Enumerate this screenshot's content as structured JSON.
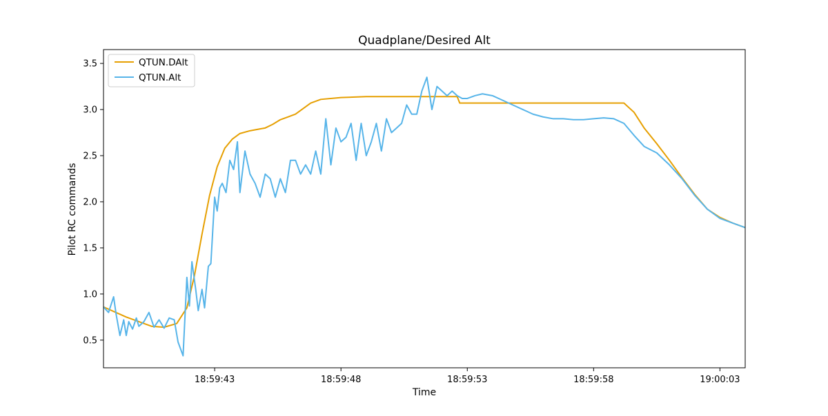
{
  "chart_data": {
    "type": "line",
    "title": "Quadplane/Desired Alt",
    "xlabel": "Time",
    "ylabel": "Pilot RC commands",
    "x_type": "time",
    "xlim": [
      "18:59:38.6",
      "19:00:04.0"
    ],
    "ylim": [
      0.2,
      3.65
    ],
    "x_ticks": [
      "18:59:43",
      "18:59:48",
      "18:59:53",
      "18:59:58",
      "19:00:03"
    ],
    "y_ticks": [
      0.5,
      1.0,
      1.5,
      2.0,
      2.5,
      3.0,
      3.5
    ],
    "y_tick_labels": [
      "0.5",
      "1.0",
      "1.5",
      "2.0",
      "2.5",
      "3.0",
      "3.5"
    ],
    "grid": false,
    "legend_position": "upper-left",
    "series": [
      {
        "name": "QTUN.DAlt",
        "color": "#e69f00",
        "x": [
          "18:59:38.6",
          "18:59:39.5",
          "18:59:40.5",
          "18:59:41.0",
          "18:59:41.5",
          "18:59:41.9",
          "18:59:42.2",
          "18:59:42.5",
          "18:59:42.8",
          "18:59:43.1",
          "18:59:43.4",
          "18:59:43.7",
          "18:59:44.0",
          "18:59:44.4",
          "18:59:44.8",
          "18:59:45.0",
          "18:59:45.3",
          "18:59:45.6",
          "18:59:45.9",
          "18:59:46.2",
          "18:59:46.5",
          "18:59:46.8",
          "18:59:47.2",
          "18:59:48.0",
          "18:59:49.0",
          "18:59:50.0",
          "18:59:51.0",
          "18:59:52.0",
          "18:59:52.6",
          "18:59:52.7",
          "18:59:53.0",
          "18:59:55.0",
          "18:59:57.0",
          "18:59:58.5",
          "18:59:59.2",
          "18:59:59.6",
          "19:00:00.0",
          "19:00:00.5",
          "19:00:01.0",
          "19:00:01.5",
          "19:00:02.0",
          "19:00:02.5",
          "19:00:03.0",
          "19:00:03.5",
          "19:00:04.0"
        ],
        "y": [
          0.86,
          0.75,
          0.65,
          0.64,
          0.68,
          0.85,
          1.2,
          1.65,
          2.07,
          2.38,
          2.58,
          2.68,
          2.74,
          2.77,
          2.79,
          2.8,
          2.84,
          2.89,
          2.92,
          2.95,
          3.01,
          3.07,
          3.11,
          3.13,
          3.14,
          3.14,
          3.14,
          3.14,
          3.14,
          3.07,
          3.07,
          3.07,
          3.07,
          3.07,
          3.07,
          2.97,
          2.8,
          2.63,
          2.45,
          2.26,
          2.08,
          1.92,
          1.83,
          1.77,
          1.72
        ]
      },
      {
        "name": "QTUN.Alt",
        "color": "#56b4e9",
        "x": [
          "18:59:38.6",
          "18:59:38.8",
          "18:59:39.0",
          "18:59:39.1",
          "18:59:39.25",
          "18:59:39.4",
          "18:59:39.5",
          "18:59:39.6",
          "18:59:39.75",
          "18:59:39.9",
          "18:59:40.0",
          "18:59:40.2",
          "18:59:40.4",
          "18:59:40.6",
          "18:59:40.8",
          "18:59:41.0",
          "18:59:41.2",
          "18:59:41.4",
          "18:59:41.55",
          "18:59:41.75",
          "18:59:41.9",
          "18:59:42.0",
          "18:59:42.1",
          "18:59:42.25",
          "18:59:42.35",
          "18:59:42.5",
          "18:59:42.6",
          "18:59:42.75",
          "18:59:42.85",
          "18:59:43.0",
          "18:59:43.1",
          "18:59:43.2",
          "18:59:43.3",
          "18:59:43.45",
          "18:59:43.6",
          "18:59:43.75",
          "18:59:43.9",
          "18:59:44.0",
          "18:59:44.2",
          "18:59:44.4",
          "18:59:44.6",
          "18:59:44.8",
          "18:59:45.0",
          "18:59:45.2",
          "18:59:45.4",
          "18:59:45.6",
          "18:59:45.8",
          "18:59:46.0",
          "18:59:46.2",
          "18:59:46.4",
          "18:59:46.6",
          "18:59:46.8",
          "18:59:47.0",
          "18:59:47.2",
          "18:59:47.4",
          "18:59:47.6",
          "18:59:47.8",
          "18:59:48.0",
          "18:59:48.2",
          "18:59:48.4",
          "18:59:48.6",
          "18:59:48.8",
          "18:59:49.0",
          "18:59:49.2",
          "18:59:49.4",
          "18:59:49.6",
          "18:59:49.8",
          "18:59:50.0",
          "18:59:50.2",
          "18:59:50.4",
          "18:59:50.6",
          "18:59:50.8",
          "18:59:51.0",
          "18:59:51.2",
          "18:59:51.4",
          "18:59:51.6",
          "18:59:51.8",
          "18:59:52.0",
          "18:59:52.2",
          "18:59:52.4",
          "18:59:52.6",
          "18:59:52.8",
          "18:59:53.0",
          "18:59:53.3",
          "18:59:53.6",
          "18:59:54.0",
          "18:59:54.4",
          "18:59:54.8",
          "18:59:55.2",
          "18:59:55.6",
          "18:59:56.0",
          "18:59:56.4",
          "18:59:56.8",
          "18:59:57.2",
          "18:59:57.6",
          "18:59:58.0",
          "18:59:58.4",
          "18:59:58.8",
          "18:59:59.2",
          "18:59:59.6",
          "19:00:00.0",
          "19:00:00.5",
          "19:00:01.0",
          "19:00:01.5",
          "19:00:02.0",
          "19:00:02.5",
          "19:00:03.0",
          "19:00:03.5",
          "19:00:04.0"
        ],
        "y": [
          0.86,
          0.8,
          0.97,
          0.78,
          0.55,
          0.72,
          0.55,
          0.7,
          0.62,
          0.74,
          0.65,
          0.7,
          0.8,
          0.64,
          0.72,
          0.63,
          0.74,
          0.72,
          0.48,
          0.33,
          1.18,
          0.87,
          1.35,
          1.05,
          0.82,
          1.05,
          0.85,
          1.3,
          1.33,
          2.05,
          1.9,
          2.15,
          2.2,
          2.1,
          2.45,
          2.35,
          2.65,
          2.1,
          2.55,
          2.3,
          2.2,
          2.05,
          2.3,
          2.25,
          2.05,
          2.25,
          2.1,
          2.45,
          2.45,
          2.3,
          2.4,
          2.3,
          2.55,
          2.3,
          2.9,
          2.4,
          2.8,
          2.65,
          2.7,
          2.85,
          2.45,
          2.85,
          2.5,
          2.65,
          2.85,
          2.55,
          2.9,
          2.75,
          2.8,
          2.85,
          3.05,
          2.95,
          2.95,
          3.2,
          3.35,
          3.0,
          3.25,
          3.2,
          3.15,
          3.2,
          3.15,
          3.12,
          3.12,
          3.15,
          3.17,
          3.15,
          3.1,
          3.05,
          3.0,
          2.95,
          2.92,
          2.9,
          2.9,
          2.89,
          2.89,
          2.9,
          2.91,
          2.9,
          2.85,
          2.72,
          2.6,
          2.53,
          2.4,
          2.25,
          2.07,
          1.92,
          1.82,
          1.77,
          1.72
        ]
      }
    ]
  }
}
